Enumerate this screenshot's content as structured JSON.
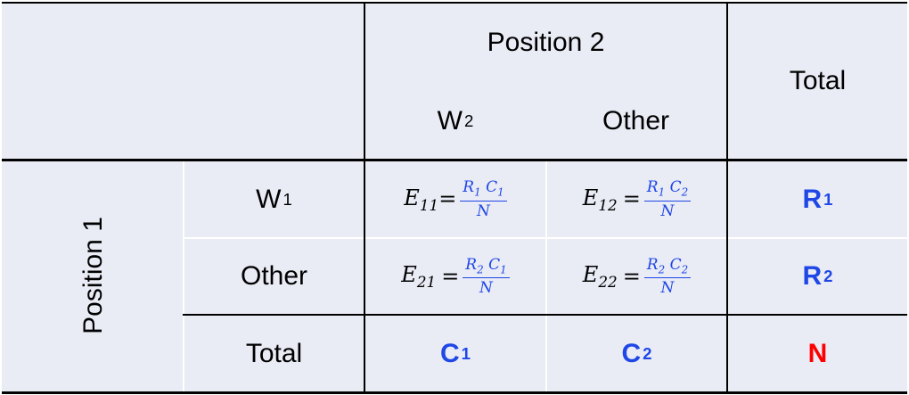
{
  "header": {
    "position2": "Position 2",
    "total": "Total",
    "w2": "W",
    "w2_sub": "2",
    "other": "Other"
  },
  "side": {
    "position1": "Position 1",
    "w1": "W",
    "w1_sub": "1",
    "other": "Other",
    "total": "Total"
  },
  "cells": {
    "e11": {
      "lhs": "E",
      "lhs_sub": "11",
      "eq": "=",
      "num_a": "R",
      "num_a_sub": "1",
      "num_b": "C",
      "num_b_sub": "1",
      "den": "N"
    },
    "e12": {
      "lhs": "E",
      "lhs_sub": "12",
      "eq": "=",
      "num_a": "R",
      "num_a_sub": "1",
      "num_b": "C",
      "num_b_sub": "2",
      "den": "N"
    },
    "e21": {
      "lhs": "E",
      "lhs_sub": "21",
      "eq": "=",
      "num_a": "R",
      "num_a_sub": "2",
      "num_b": "C",
      "num_b_sub": "1",
      "den": "N"
    },
    "e22": {
      "lhs": "E",
      "lhs_sub": "22",
      "eq": "=",
      "num_a": "R",
      "num_a_sub": "2",
      "num_b": "C",
      "num_b_sub": "2",
      "den": "N"
    }
  },
  "totals": {
    "r1": "R",
    "r1_sub": "1",
    "r2": "R",
    "r2_sub": "2",
    "c1": "C",
    "c1_sub": "1",
    "c2": "C",
    "c2_sub": "2",
    "n": "N"
  },
  "colors": {
    "accent_blue": "#1f47e6",
    "grand_total_red": "#ff0000",
    "background": "#e9ebf5"
  }
}
